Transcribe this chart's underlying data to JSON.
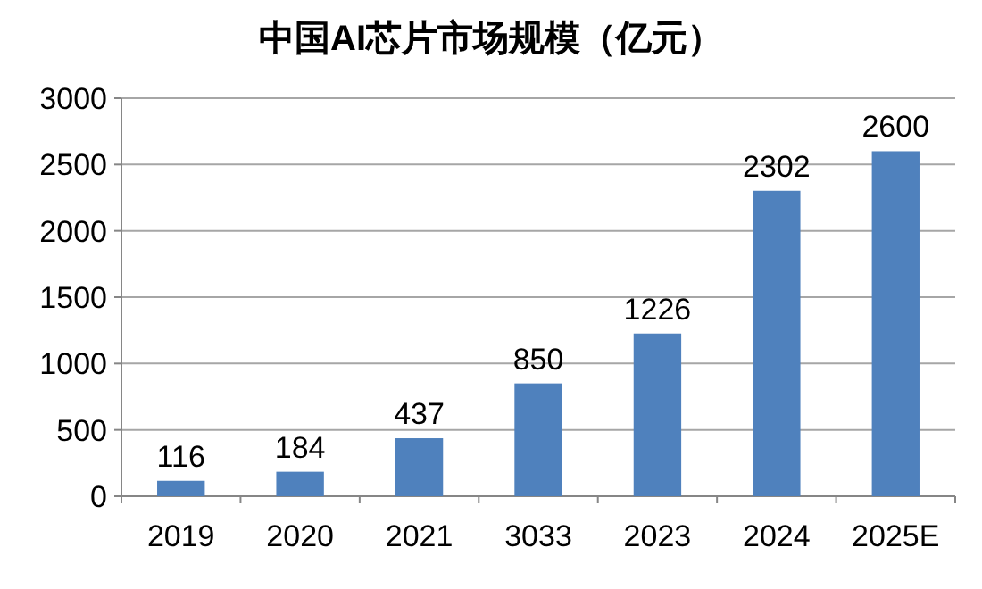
{
  "chart_data": {
    "type": "bar",
    "title": "中国AI芯片市场规模（亿元）",
    "categories": [
      "2019",
      "2020",
      "2021",
      "3033",
      "2023",
      "2024",
      "2025E"
    ],
    "values": [
      116,
      184,
      437,
      850,
      1226,
      2302,
      2600
    ],
    "color": "#4f81bd",
    "ylim": [
      0,
      3000
    ],
    "yticks": [
      0,
      500,
      1000,
      1500,
      2000,
      2500,
      3000
    ],
    "grid": "y",
    "data_labels": true
  }
}
